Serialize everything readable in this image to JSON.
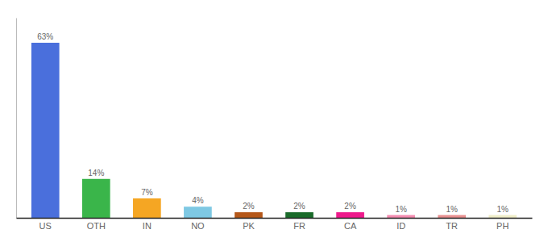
{
  "chart_data": {
    "type": "bar",
    "categories": [
      "US",
      "OTH",
      "IN",
      "NO",
      "PK",
      "FR",
      "CA",
      "ID",
      "TR",
      "PH"
    ],
    "values": [
      63,
      14,
      7,
      4,
      2,
      2,
      2,
      1,
      1,
      1
    ],
    "value_labels": [
      "63%",
      "14%",
      "7%",
      "4%",
      "2%",
      "2%",
      "2%",
      "1%",
      "1%",
      "1%"
    ],
    "colors": [
      "#4a6fdc",
      "#3ab54a",
      "#f5a623",
      "#7ec8e3",
      "#b5581a",
      "#1a6b2a",
      "#ee1a8c",
      "#f48cb0",
      "#e89090",
      "#f0eec8"
    ],
    "ylim": [
      0,
      72
    ],
    "data_labels": true,
    "tick_labels": "x"
  }
}
